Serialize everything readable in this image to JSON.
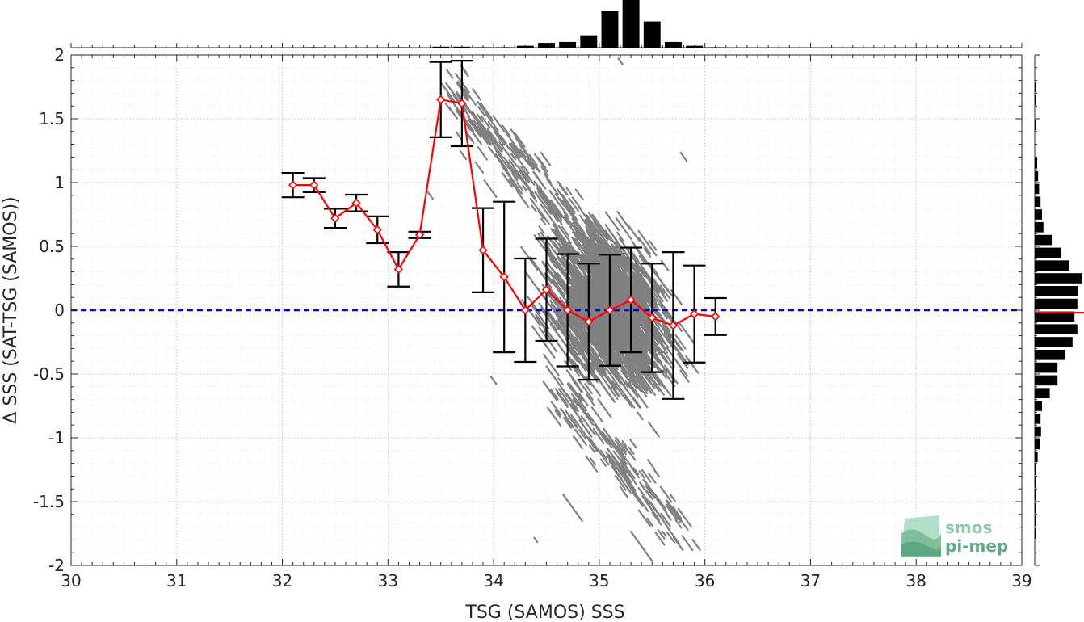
{
  "chart_data": {
    "type": "scatter",
    "title": "",
    "xlabel": "TSG (SAMOS) SSS",
    "ylabel": "Δ SSS (SAT-TSG (SAMOS))",
    "xlim": [
      30,
      39
    ],
    "ylim": [
      -2,
      2
    ],
    "x_ticks": [
      30,
      31,
      32,
      33,
      34,
      35,
      36,
      37,
      38,
      39
    ],
    "y_ticks": [
      -2,
      -1.5,
      -1,
      -0.5,
      0,
      0.5,
      1,
      1.5,
      2
    ],
    "x_tick_labels": [
      "30",
      "31",
      "32",
      "33",
      "34",
      "35",
      "36",
      "37",
      "38",
      "39"
    ],
    "y_tick_labels": [
      "-2",
      "-1.5",
      "-1",
      "-0.5",
      "0",
      "0.5",
      "1",
      "1.5",
      "2"
    ],
    "grid": true,
    "zero_line": {
      "y": 0,
      "color": "#0000dd",
      "style": "dashed"
    },
    "binned_mean": {
      "color": "#ff0000",
      "x": [
        32.1,
        32.3,
        32.5,
        32.7,
        32.9,
        33.1,
        33.3,
        33.5,
        33.7,
        33.9,
        34.1,
        34.3,
        34.5,
        34.7,
        34.9,
        35.1,
        35.3,
        35.5,
        35.7,
        35.9,
        36.1
      ],
      "mean": [
        0.98,
        0.98,
        0.72,
        0.84,
        0.63,
        0.32,
        0.59,
        1.65,
        1.62,
        0.47,
        0.26,
        0.0,
        0.16,
        0.0,
        -0.09,
        0.0,
        0.08,
        -0.06,
        -0.12,
        -0.03,
        -0.05
      ],
      "std": [
        0.095,
        0.055,
        0.075,
        0.065,
        0.105,
        0.135,
        0.025,
        0.295,
        0.335,
        0.33,
        0.59,
        0.405,
        0.4,
        0.44,
        0.455,
        0.435,
        0.41,
        0.425,
        0.575,
        0.38,
        0.145
      ]
    },
    "scatter_color": "#808080",
    "top_histogram": {
      "bin_centers": [
        32.3,
        33.1,
        33.5,
        33.7,
        33.9,
        34.1,
        34.3,
        34.5,
        34.7,
        34.9,
        35.1,
        35.3,
        35.5,
        35.7,
        35.9,
        36.1
      ],
      "relative_counts": [
        0.01,
        0.01,
        0.02,
        0.02,
        0.01,
        0.01,
        0.04,
        0.1,
        0.12,
        0.26,
        0.77,
        1.0,
        0.55,
        0.12,
        0.04,
        0.01
      ]
    },
    "right_histogram": {
      "bin_centers": [
        1.75,
        1.65,
        1.45,
        1.15,
        1.05,
        0.95,
        0.85,
        0.75,
        0.65,
        0.55,
        0.45,
        0.35,
        0.25,
        0.15,
        0.05,
        -0.05,
        -0.15,
        -0.25,
        -0.35,
        -0.45,
        -0.55,
        -0.65,
        -0.75,
        -0.85,
        -0.95,
        -1.05,
        -1.15,
        -1.25,
        -1.35,
        -1.45,
        -1.55,
        -1.65,
        -1.75
      ],
      "relative_counts": [
        0.03,
        0.03,
        0.03,
        0.05,
        0.07,
        0.09,
        0.12,
        0.15,
        0.18,
        0.35,
        0.55,
        0.71,
        0.98,
        0.9,
        0.88,
        0.82,
        0.88,
        0.78,
        0.62,
        0.47,
        0.47,
        0.31,
        0.15,
        0.12,
        0.13,
        0.11,
        0.06,
        0.03,
        0.03,
        0.03,
        0.02,
        0.02,
        0.02
      ],
      "mean_marker": {
        "y": -0.02,
        "color": "#ff0000"
      }
    },
    "logo": {
      "line1": "smos",
      "line2": "pi-mep",
      "color": "#7fbf9f"
    }
  }
}
